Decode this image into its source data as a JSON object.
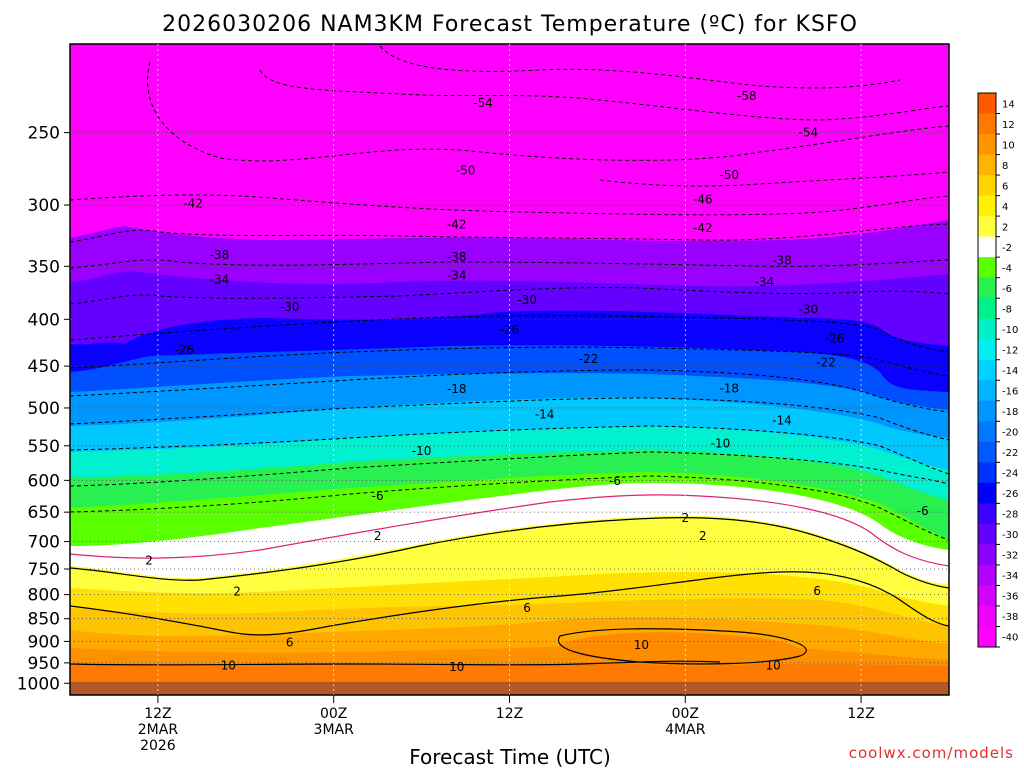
{
  "chart_data": {
    "type": "heatmap",
    "title": "2026030206 NAM3KM Forecast Temperature (ºC) for KSFO",
    "xlabel": "Forecast Time (UTC)",
    "ylabel": "",
    "credit": "coolwx.com/models",
    "y_scale": "log-pressure",
    "y_ticks": [
      250,
      300,
      350,
      400,
      450,
      500,
      550,
      600,
      650,
      700,
      750,
      800,
      850,
      900,
      950,
      1000
    ],
    "x_ticks": [
      {
        "lines": [
          "12Z",
          "2MAR",
          "2026"
        ]
      },
      {
        "lines": [
          "00Z",
          "3MAR"
        ]
      },
      {
        "lines": [
          "12Z"
        ]
      },
      {
        "lines": [
          "00Z",
          "4MAR"
        ]
      },
      {
        "lines": [
          "12Z"
        ]
      }
    ],
    "colorbar": {
      "labels": [
        "14",
        "12",
        "10",
        "8",
        "6",
        "4",
        "2",
        "-2",
        "-4",
        "-6",
        "-8",
        "-10",
        "-12",
        "-14",
        "-16",
        "-18",
        "-20",
        "-22",
        "-24",
        "-26",
        "-28",
        "-30",
        "-32",
        "-34",
        "-36",
        "-38",
        "-40"
      ],
      "colors": [
        "#ff5a00",
        "#ff7800",
        "#ff9600",
        "#ffb400",
        "#ffd200",
        "#ffef00",
        "#ffff40",
        "#ffffff",
        "#5aff00",
        "#28f050",
        "#00f08c",
        "#00f0c8",
        "#00f0f0",
        "#00d2ff",
        "#00b4ff",
        "#0096ff",
        "#0078ff",
        "#005aff",
        "#0032ff",
        "#0000ff",
        "#3c00ff",
        "#6400ff",
        "#8c00ff",
        "#b400ff",
        "#d200ff",
        "#f000ff",
        "#ff00ff"
      ]
    },
    "temperature_bands_at_start": [
      {
        "pressure_top": 200,
        "pressure_bottom": 330,
        "temp": "-42 and colder"
      },
      {
        "pressure_top": 330,
        "pressure_bottom": 440,
        "temp": "-30 to -40"
      },
      {
        "pressure_top": 440,
        "pressure_bottom": 560,
        "temp": "-14 to -26"
      },
      {
        "pressure_top": 560,
        "pressure_bottom": 700,
        "temp": "-2 to -12"
      },
      {
        "pressure_top": 720,
        "pressure_bottom": 760,
        "temp": "-2 to 2"
      },
      {
        "pressure_top": 760,
        "pressure_bottom": 1000,
        "temp": "2 to 14"
      }
    ],
    "contour_labels": [
      {
        "text": "-54",
        "time": 0.47,
        "p": 232
      },
      {
        "text": "-58",
        "time": 0.77,
        "p": 228
      },
      {
        "text": "-54",
        "time": 0.84,
        "p": 250
      },
      {
        "text": "-50",
        "time": 0.45,
        "p": 275
      },
      {
        "text": "-50",
        "time": 0.75,
        "p": 278
      },
      {
        "text": "-46",
        "time": 0.72,
        "p": 296
      },
      {
        "text": "-42",
        "time": 0.14,
        "p": 299
      },
      {
        "text": "-42",
        "time": 0.44,
        "p": 315
      },
      {
        "text": "-42",
        "time": 0.72,
        "p": 318
      },
      {
        "text": "-38",
        "time": 0.17,
        "p": 340
      },
      {
        "text": "-38",
        "time": 0.44,
        "p": 342
      },
      {
        "text": "-38",
        "time": 0.81,
        "p": 345
      },
      {
        "text": "-34",
        "time": 0.17,
        "p": 362
      },
      {
        "text": "-34",
        "time": 0.44,
        "p": 358
      },
      {
        "text": "-34",
        "time": 0.79,
        "p": 364
      },
      {
        "text": "-30",
        "time": 0.25,
        "p": 388
      },
      {
        "text": "-30",
        "time": 0.52,
        "p": 381
      },
      {
        "text": "-30",
        "time": 0.84,
        "p": 390
      },
      {
        "text": "-26",
        "time": 0.13,
        "p": 432
      },
      {
        "text": "-26",
        "time": 0.5,
        "p": 411
      },
      {
        "text": "-26",
        "time": 0.87,
        "p": 420
      },
      {
        "text": "-22",
        "time": 0.59,
        "p": 442
      },
      {
        "text": "-22",
        "time": 0.86,
        "p": 446
      },
      {
        "text": "-18",
        "time": 0.44,
        "p": 477
      },
      {
        "text": "-18",
        "time": 0.75,
        "p": 476
      },
      {
        "text": "-14",
        "time": 0.54,
        "p": 508
      },
      {
        "text": "-14",
        "time": 0.81,
        "p": 516
      },
      {
        "text": "-10",
        "time": 0.4,
        "p": 557
      },
      {
        "text": "-10",
        "time": 0.74,
        "p": 547
      },
      {
        "text": "-6",
        "time": 0.35,
        "p": 624
      },
      {
        "text": "-6",
        "time": 0.62,
        "p": 601
      },
      {
        "text": "-6",
        "time": 0.97,
        "p": 648
      },
      {
        "text": "2",
        "time": 0.09,
        "p": 734
      },
      {
        "text": "2",
        "time": 0.35,
        "p": 690
      },
      {
        "text": "2",
        "time": 0.7,
        "p": 660
      },
      {
        "text": "2",
        "time": 0.72,
        "p": 690
      },
      {
        "text": "2",
        "time": 0.19,
        "p": 794
      },
      {
        "text": "6",
        "time": 0.52,
        "p": 827
      },
      {
        "text": "6",
        "time": 0.85,
        "p": 793
      },
      {
        "text": "6",
        "time": 0.25,
        "p": 903
      },
      {
        "text": "10",
        "time": 0.65,
        "p": 908
      },
      {
        "text": "10",
        "time": 0.18,
        "p": 956
      },
      {
        "text": "10",
        "time": 0.44,
        "p": 960
      },
      {
        "text": "10",
        "time": 0.8,
        "p": 956
      }
    ]
  }
}
